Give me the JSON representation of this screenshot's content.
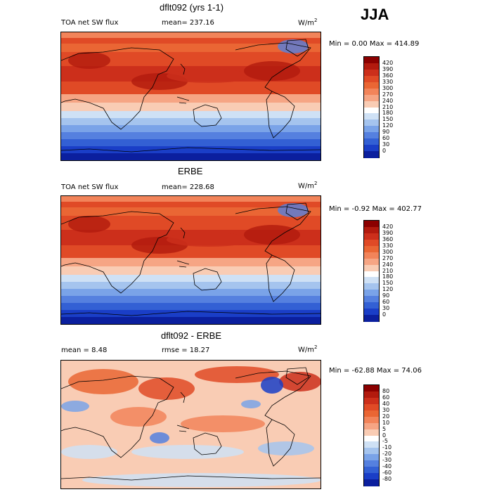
{
  "season": "JJA",
  "units": {
    "base": "W/m",
    "exp": "2"
  },
  "panels": [
    {
      "title": "dflt092 (yrs 1-1)",
      "left_label": "TOA net SW flux",
      "stat_label": "mean= 237.16",
      "range": "Min =    0.00 Max = 414.89",
      "map_type": "abs"
    },
    {
      "title": "ERBE",
      "left_label": "TOA net SW flux",
      "stat_label": "mean= 228.68",
      "range": "Min =  -0.92 Max = 402.77",
      "map_type": "abs"
    },
    {
      "title": "dflt092 - ERBE",
      "left_label": "mean =    8.48",
      "stat_label": "rmse =   18.27",
      "range": "Min = -62.88 Max =  74.06",
      "map_type": "diff"
    }
  ],
  "chart_data": [
    {
      "type": "heatmap",
      "title": "dflt092 (yrs 1-1)",
      "variable": "TOA net SW flux",
      "mean": 237.16,
      "min": 0.0,
      "max": 414.89,
      "colorbar_levels": [
        420,
        390,
        360,
        330,
        300,
        270,
        240,
        210,
        180,
        150,
        120,
        90,
        60,
        30,
        0
      ],
      "colorbar_colors": [
        "#8b0000",
        "#b21a0e",
        "#cc2f1b",
        "#e04a26",
        "#ea6634",
        "#f2845a",
        "#f6a584",
        "#f9ccb4",
        "#ffffff",
        "#cfe1f5",
        "#a5c4ee",
        "#7aa3e8",
        "#5580df",
        "#3360d4",
        "#1a3ec7",
        "#0b1f9e"
      ]
    },
    {
      "type": "heatmap",
      "title": "ERBE",
      "variable": "TOA net SW flux",
      "mean": 228.68,
      "min": -0.92,
      "max": 402.77,
      "colorbar_levels": [
        420,
        390,
        360,
        330,
        300,
        270,
        240,
        210,
        180,
        150,
        120,
        90,
        60,
        30,
        0
      ],
      "colorbar_colors": [
        "#8b0000",
        "#b21a0e",
        "#cc2f1b",
        "#e04a26",
        "#ea6634",
        "#f2845a",
        "#f6a584",
        "#f9ccb4",
        "#ffffff",
        "#cfe1f5",
        "#a5c4ee",
        "#7aa3e8",
        "#5580df",
        "#3360d4",
        "#1a3ec7",
        "#0b1f9e"
      ]
    },
    {
      "type": "heatmap",
      "title": "dflt092 - ERBE",
      "mean": 8.48,
      "rmse": 18.27,
      "min": -62.88,
      "max": 74.06,
      "colorbar_levels": [
        80,
        60,
        40,
        30,
        20,
        10,
        5,
        0,
        -5,
        -10,
        -20,
        -30,
        -40,
        -60,
        -80
      ],
      "colorbar_colors": [
        "#8b0000",
        "#b21a0e",
        "#cc2f1b",
        "#e04a26",
        "#ea6634",
        "#f2845a",
        "#f6a584",
        "#f9ccb4",
        "#ffffff",
        "#cfe1f5",
        "#a5c4ee",
        "#7aa3e8",
        "#5580df",
        "#3360d4",
        "#1a3ec7",
        "#0b1f9e"
      ]
    }
  ]
}
